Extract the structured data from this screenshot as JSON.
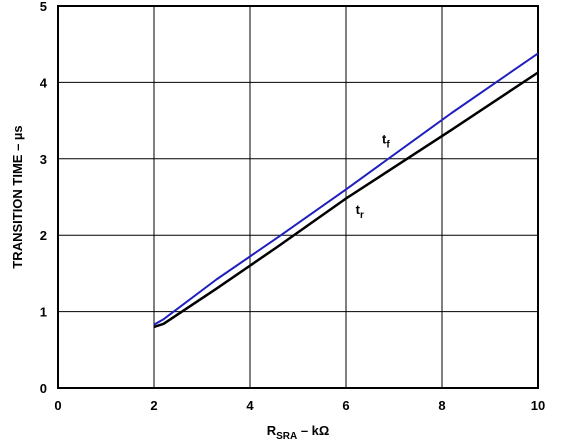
{
  "chart_data": {
    "type": "line",
    "xlabel": {
      "main": "R",
      "sub": "SRA",
      "rest": " – kΩ"
    },
    "ylabel": "TRANSITION TIME – µs",
    "xlim": [
      0,
      10
    ],
    "ylim": [
      0,
      5
    ],
    "x_ticks": [
      "0",
      "2",
      "4",
      "6",
      "8",
      "10"
    ],
    "y_ticks": [
      "0",
      "1",
      "2",
      "3",
      "4",
      "5"
    ],
    "grid": true,
    "series": [
      {
        "name": "t_f",
        "label_main": "t",
        "label_sub": "f",
        "color": "#1f1fbf",
        "points": [
          [
            2.0,
            0.83
          ],
          [
            2.2,
            0.9
          ],
          [
            3.3,
            1.42
          ],
          [
            4.6,
            1.98
          ],
          [
            6.0,
            2.6
          ],
          [
            8.2,
            3.6
          ],
          [
            10.0,
            4.38
          ]
        ]
      },
      {
        "name": "t_r",
        "label_main": "t",
        "label_sub": "r",
        "color": "#000000",
        "points": [
          [
            2.0,
            0.8
          ],
          [
            2.2,
            0.84
          ],
          [
            3.3,
            1.3
          ],
          [
            4.6,
            1.86
          ],
          [
            6.0,
            2.48
          ],
          [
            8.2,
            3.38
          ],
          [
            10.0,
            4.13
          ]
        ]
      }
    ]
  }
}
